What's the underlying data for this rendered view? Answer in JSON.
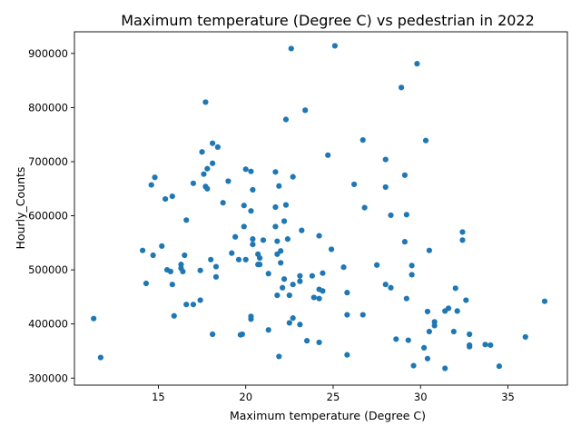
{
  "chart_data": {
    "type": "scatter",
    "title": "Maximum temperature (Degree C) vs pedestrian in 2022",
    "xlabel": "Maximum temperature (Degree C)",
    "ylabel": "Hourly_Counts",
    "xlim": [
      10.2,
      38.4
    ],
    "ylim": [
      287000,
      940000
    ],
    "x_ticks": [
      15,
      20,
      25,
      30,
      35
    ],
    "x_tick_labels": [
      "15",
      "20",
      "25",
      "30",
      "35"
    ],
    "y_ticks": [
      300000,
      400000,
      500000,
      600000,
      700000,
      800000,
      900000
    ],
    "y_tick_labels": [
      "300000",
      "400000",
      "500000",
      "600000",
      "700000",
      "800000",
      "900000"
    ],
    "grid": false,
    "marker_color": "#1f77b4",
    "points": [
      {
        "x": 11.3,
        "y": 410000
      },
      {
        "x": 11.7,
        "y": 338000
      },
      {
        "x": 14.1,
        "y": 536000
      },
      {
        "x": 14.3,
        "y": 475000
      },
      {
        "x": 14.6,
        "y": 657000
      },
      {
        "x": 14.7,
        "y": 527000
      },
      {
        "x": 14.8,
        "y": 671000
      },
      {
        "x": 15.2,
        "y": 544000
      },
      {
        "x": 15.4,
        "y": 631000
      },
      {
        "x": 15.5,
        "y": 500000
      },
      {
        "x": 15.7,
        "y": 497000
      },
      {
        "x": 15.8,
        "y": 636000
      },
      {
        "x": 15.8,
        "y": 473000
      },
      {
        "x": 15.9,
        "y": 415000
      },
      {
        "x": 16.3,
        "y": 510000
      },
      {
        "x": 16.3,
        "y": 503000
      },
      {
        "x": 16.4,
        "y": 497000
      },
      {
        "x": 16.5,
        "y": 527000
      },
      {
        "x": 16.6,
        "y": 592000
      },
      {
        "x": 16.6,
        "y": 436000
      },
      {
        "x": 17.0,
        "y": 660000
      },
      {
        "x": 17.0,
        "y": 436000
      },
      {
        "x": 17.4,
        "y": 444000
      },
      {
        "x": 17.4,
        "y": 499000
      },
      {
        "x": 17.5,
        "y": 718000
      },
      {
        "x": 17.6,
        "y": 677000
      },
      {
        "x": 17.7,
        "y": 810000
      },
      {
        "x": 17.7,
        "y": 654000
      },
      {
        "x": 17.8,
        "y": 687000
      },
      {
        "x": 17.8,
        "y": 650000
      },
      {
        "x": 18.0,
        "y": 519000
      },
      {
        "x": 18.1,
        "y": 734000
      },
      {
        "x": 18.1,
        "y": 697000
      },
      {
        "x": 18.1,
        "y": 381000
      },
      {
        "x": 18.3,
        "y": 506000
      },
      {
        "x": 18.3,
        "y": 487000
      },
      {
        "x": 18.4,
        "y": 727000
      },
      {
        "x": 18.7,
        "y": 624000
      },
      {
        "x": 19.0,
        "y": 664000
      },
      {
        "x": 19.2,
        "y": 531000
      },
      {
        "x": 19.4,
        "y": 561000
      },
      {
        "x": 19.6,
        "y": 519000
      },
      {
        "x": 19.7,
        "y": 380000
      },
      {
        "x": 19.8,
        "y": 381000
      },
      {
        "x": 19.9,
        "y": 619000
      },
      {
        "x": 19.9,
        "y": 580000
      },
      {
        "x": 20.0,
        "y": 686000
      },
      {
        "x": 20.0,
        "y": 519000
      },
      {
        "x": 20.3,
        "y": 682000
      },
      {
        "x": 20.3,
        "y": 609000
      },
      {
        "x": 20.3,
        "y": 414000
      },
      {
        "x": 20.3,
        "y": 409000
      },
      {
        "x": 20.4,
        "y": 648000
      },
      {
        "x": 20.4,
        "y": 557000
      },
      {
        "x": 20.4,
        "y": 547000
      },
      {
        "x": 20.7,
        "y": 529000
      },
      {
        "x": 20.7,
        "y": 510000
      },
      {
        "x": 20.8,
        "y": 522000
      },
      {
        "x": 20.8,
        "y": 510000
      },
      {
        "x": 21.0,
        "y": 555000
      },
      {
        "x": 21.3,
        "y": 493000
      },
      {
        "x": 21.3,
        "y": 389000
      },
      {
        "x": 21.7,
        "y": 681000
      },
      {
        "x": 21.7,
        "y": 616000
      },
      {
        "x": 21.7,
        "y": 580000
      },
      {
        "x": 21.8,
        "y": 553000
      },
      {
        "x": 21.8,
        "y": 529000
      },
      {
        "x": 21.8,
        "y": 453000
      },
      {
        "x": 21.9,
        "y": 655000
      },
      {
        "x": 21.9,
        "y": 340000
      },
      {
        "x": 22.0,
        "y": 535000
      },
      {
        "x": 22.0,
        "y": 513000
      },
      {
        "x": 22.1,
        "y": 467000
      },
      {
        "x": 22.2,
        "y": 590000
      },
      {
        "x": 22.2,
        "y": 483000
      },
      {
        "x": 22.3,
        "y": 778000
      },
      {
        "x": 22.3,
        "y": 620000
      },
      {
        "x": 22.4,
        "y": 557000
      },
      {
        "x": 22.5,
        "y": 453000
      },
      {
        "x": 22.5,
        "y": 402000
      },
      {
        "x": 22.6,
        "y": 909000
      },
      {
        "x": 22.7,
        "y": 672000
      },
      {
        "x": 22.7,
        "y": 473000
      },
      {
        "x": 22.7,
        "y": 411000
      },
      {
        "x": 23.1,
        "y": 489000
      },
      {
        "x": 23.1,
        "y": 479000
      },
      {
        "x": 23.1,
        "y": 399000
      },
      {
        "x": 23.2,
        "y": 573000
      },
      {
        "x": 23.4,
        "y": 795000
      },
      {
        "x": 23.5,
        "y": 369000
      },
      {
        "x": 23.8,
        "y": 489000
      },
      {
        "x": 23.9,
        "y": 449000
      },
      {
        "x": 24.2,
        "y": 563000
      },
      {
        "x": 24.2,
        "y": 464000
      },
      {
        "x": 24.2,
        "y": 447000
      },
      {
        "x": 24.2,
        "y": 366000
      },
      {
        "x": 24.4,
        "y": 494000
      },
      {
        "x": 24.4,
        "y": 461000
      },
      {
        "x": 24.7,
        "y": 712000
      },
      {
        "x": 24.9,
        "y": 538000
      },
      {
        "x": 25.1,
        "y": 914000
      },
      {
        "x": 25.6,
        "y": 505000
      },
      {
        "x": 25.8,
        "y": 458000
      },
      {
        "x": 25.8,
        "y": 417000
      },
      {
        "x": 25.8,
        "y": 343000
      },
      {
        "x": 26.2,
        "y": 658000
      },
      {
        "x": 26.7,
        "y": 740000
      },
      {
        "x": 26.7,
        "y": 417000
      },
      {
        "x": 26.8,
        "y": 615000
      },
      {
        "x": 27.5,
        "y": 509000
      },
      {
        "x": 28.0,
        "y": 704000
      },
      {
        "x": 28.0,
        "y": 653000
      },
      {
        "x": 28.0,
        "y": 473000
      },
      {
        "x": 28.3,
        "y": 601000
      },
      {
        "x": 28.3,
        "y": 467000
      },
      {
        "x": 28.6,
        "y": 372000
      },
      {
        "x": 28.9,
        "y": 837000
      },
      {
        "x": 29.1,
        "y": 675000
      },
      {
        "x": 29.1,
        "y": 552000
      },
      {
        "x": 29.2,
        "y": 602000
      },
      {
        "x": 29.2,
        "y": 447000
      },
      {
        "x": 29.3,
        "y": 370000
      },
      {
        "x": 29.5,
        "y": 508000
      },
      {
        "x": 29.5,
        "y": 491000
      },
      {
        "x": 29.6,
        "y": 323000
      },
      {
        "x": 29.8,
        "y": 881000
      },
      {
        "x": 30.2,
        "y": 356000
      },
      {
        "x": 30.3,
        "y": 739000
      },
      {
        "x": 30.4,
        "y": 423000
      },
      {
        "x": 30.4,
        "y": 336000
      },
      {
        "x": 30.5,
        "y": 536000
      },
      {
        "x": 30.5,
        "y": 386000
      },
      {
        "x": 30.8,
        "y": 404000
      },
      {
        "x": 30.8,
        "y": 397000
      },
      {
        "x": 31.4,
        "y": 424000
      },
      {
        "x": 31.4,
        "y": 318000
      },
      {
        "x": 31.6,
        "y": 429000
      },
      {
        "x": 31.9,
        "y": 386000
      },
      {
        "x": 32.0,
        "y": 466000
      },
      {
        "x": 32.1,
        "y": 424000
      },
      {
        "x": 32.4,
        "y": 570000
      },
      {
        "x": 32.4,
        "y": 555000
      },
      {
        "x": 32.6,
        "y": 444000
      },
      {
        "x": 32.8,
        "y": 381000
      },
      {
        "x": 32.8,
        "y": 361000
      },
      {
        "x": 32.8,
        "y": 358000
      },
      {
        "x": 33.7,
        "y": 362000
      },
      {
        "x": 34.0,
        "y": 361000
      },
      {
        "x": 34.5,
        "y": 322000
      },
      {
        "x": 36.0,
        "y": 376000
      },
      {
        "x": 37.1,
        "y": 442000
      }
    ]
  }
}
